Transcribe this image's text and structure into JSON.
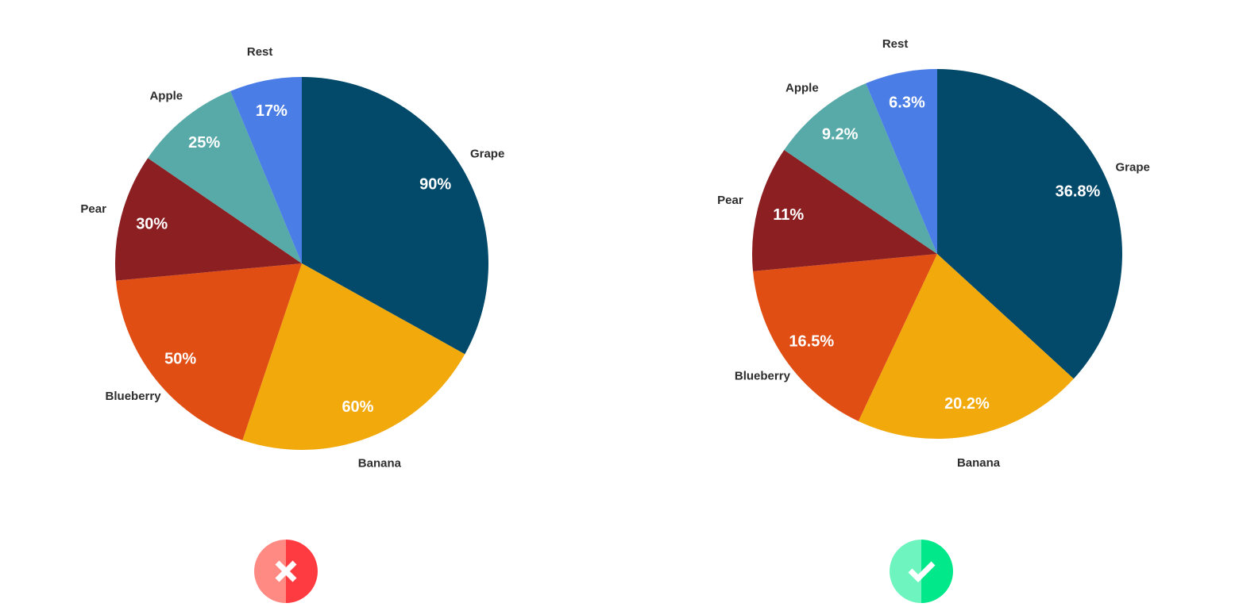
{
  "chart_data": [
    {
      "type": "pie",
      "categories": [
        "Grape",
        "Banana",
        "Blueberry",
        "Pear",
        "Apple",
        "Rest"
      ],
      "values": [
        90,
        60,
        50,
        30,
        25,
        17
      ],
      "value_labels": [
        "90%",
        "60%",
        "50%",
        "30%",
        "25%",
        "17%"
      ],
      "colors": [
        "#034a6a",
        "#f1a90b",
        "#e04e14",
        "#8b1f21",
        "#58aaa9",
        "#4a7de6"
      ]
    },
    {
      "type": "pie",
      "categories": [
        "Grape",
        "Banana",
        "Blueberry",
        "Pear",
        "Apple",
        "Rest"
      ],
      "values": [
        36.8,
        20.2,
        16.5,
        11,
        9.2,
        6.3
      ],
      "value_labels": [
        "36.8%",
        "20.2%",
        "16.5%",
        "11%",
        "9.2%",
        "6.3%"
      ],
      "colors": [
        "#034a6a",
        "#f1a90b",
        "#e04e14",
        "#8b1f21",
        "#58aaa9",
        "#4a7de6"
      ]
    }
  ]
}
